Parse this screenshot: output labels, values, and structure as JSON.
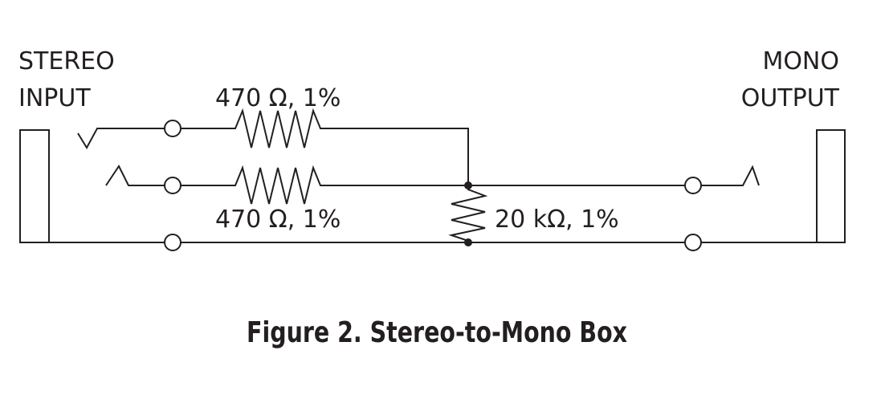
{
  "diagram": {
    "input_label": {
      "line1": "STEREO",
      "line2": "INPUT"
    },
    "output_label": {
      "line1": "MONO",
      "line2": "OUTPUT"
    },
    "resistors": {
      "tip_label": "470 Ω, 1%",
      "ring_label": "470 Ω, 1%",
      "load_label": "20 kΩ, 1%"
    },
    "caption": "Figure 2. Stereo-to-Mono Box",
    "colors": {
      "ink": "#231f20",
      "background": "#ffffff"
    }
  }
}
